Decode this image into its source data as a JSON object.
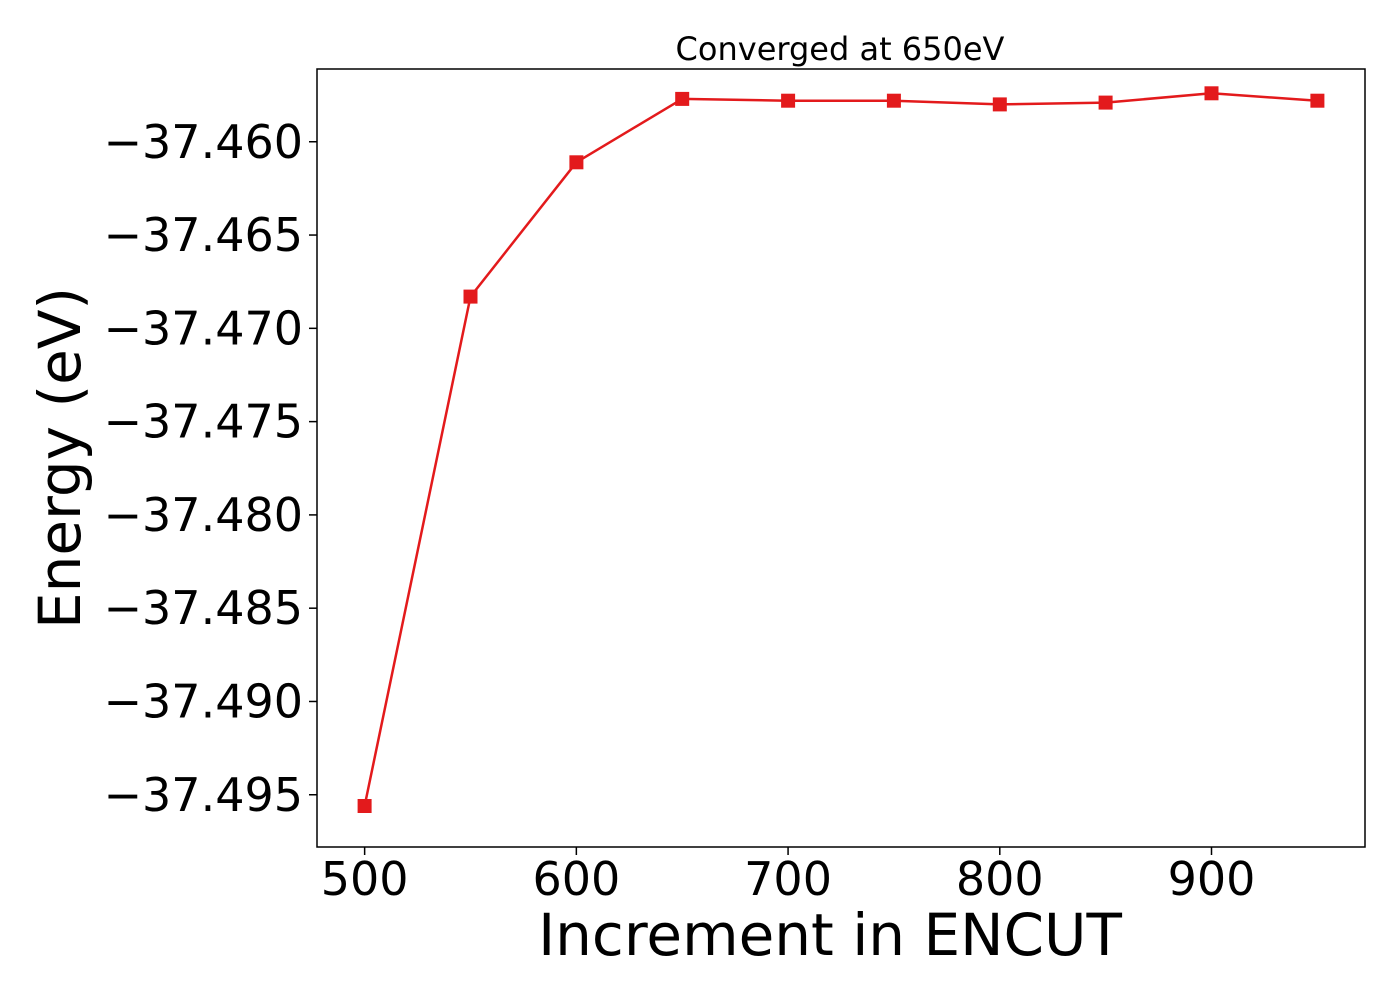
{
  "chart_data": {
    "type": "line",
    "title": "Converged at 650eV",
    "xlabel": "Increment in ENCUT",
    "ylabel": "Energy (eV)",
    "x": [
      500,
      550,
      600,
      650,
      700,
      750,
      800,
      850,
      900,
      950
    ],
    "series": [
      {
        "values": [
          -37.4956,
          -37.4683,
          -37.4611,
          -37.4577,
          -37.4578,
          -37.4578,
          -37.458,
          -37.4579,
          -37.4574,
          -37.4578
        ],
        "color": "#e31a1c",
        "marker": "square"
      }
    ],
    "xlim": [
      477.5,
      972.5
    ],
    "ylim": [
      -37.4978,
      -37.4561
    ],
    "xticks": [
      500,
      600,
      700,
      800,
      900
    ],
    "yticks": [
      -37.46,
      -37.465,
      -37.47,
      -37.475,
      -37.48,
      -37.485,
      -37.49,
      -37.495
    ],
    "xtick_labels": [
      "500",
      "600",
      "700",
      "800",
      "900"
    ],
    "ytick_labels": [
      "−37.460",
      "−37.465",
      "−37.470",
      "−37.475",
      "−37.480",
      "−37.485",
      "−37.490",
      "−37.495"
    ],
    "grid": false,
    "legend": "none"
  }
}
